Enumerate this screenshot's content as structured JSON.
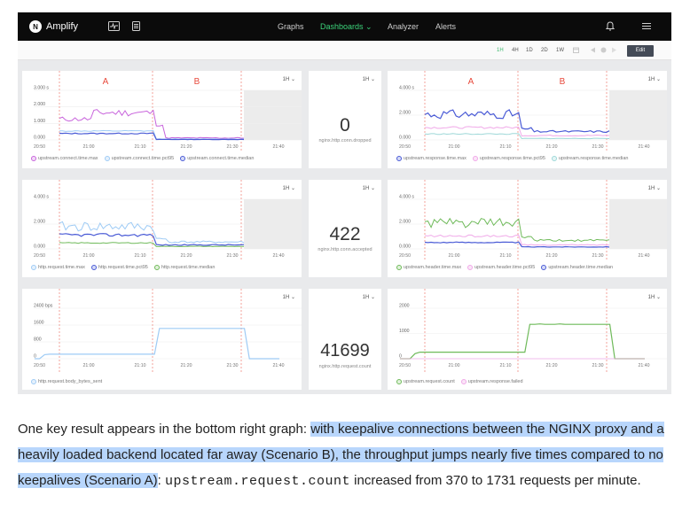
{
  "app": {
    "logo_letter": "N",
    "name": "Amplify"
  },
  "nav": {
    "graphs": "Graphs",
    "dashboards": "Dashboards",
    "analyzer": "Analyzer",
    "alerts": "Alerts"
  },
  "time_ranges": [
    "1H",
    "4H",
    "1D",
    "2D",
    "1W"
  ],
  "edit_label": "Edit",
  "panel_range": "1H",
  "scenario_a": "A",
  "scenario_b": "B",
  "colors": {
    "accent": "#3cd37a",
    "max": "#c864dc",
    "pct95": "#9ecbf5",
    "median": "#4a5bd6",
    "green": "#6fba5a",
    "red_marker": "#f08c82",
    "highlight": "#b8d6fc"
  },
  "panels": {
    "p1": {
      "y_ticks": [
        "3.000 s",
        "2.000",
        "1.000",
        "0.000"
      ],
      "x_ticks": [
        "20:50",
        "21:00",
        "21:10",
        "21:20",
        "21:30",
        "21:40"
      ],
      "legend": [
        "upstream.connect.time.max",
        "upstream.connect.time.pct95",
        "upstream.connect.time.median"
      ]
    },
    "p2": {
      "value": "0",
      "metric": "nginx.http.conn.dropped"
    },
    "p3": {
      "y_ticks": [
        "4.000 s",
        "2.000",
        "0.000"
      ],
      "x_ticks": [
        "20:50",
        "21:00",
        "21:10",
        "21:20",
        "21:30",
        "21:40"
      ],
      "legend": [
        "upstream.response.time.max",
        "upstream.response.time.pct95",
        "upstream.response.time.median"
      ]
    },
    "p4": {
      "y_ticks": [
        "4.000 s",
        "2.000",
        "0.000"
      ],
      "x_ticks": [
        "20:50",
        "21:00",
        "21:10",
        "21:20",
        "21:30",
        "21:40"
      ],
      "legend": [
        "http.request.time.max",
        "http.request.time.pct95",
        "http.request.time.median"
      ]
    },
    "p5": {
      "value": "422",
      "metric": "nginx.http.conn.accepted"
    },
    "p6": {
      "y_ticks": [
        "4.000 s",
        "2.000",
        "0.000"
      ],
      "x_ticks": [
        "20:50",
        "21:00",
        "21:10",
        "21:20",
        "21:30",
        "21:40"
      ],
      "legend": [
        "upstream.header.time.max",
        "upstream.header.time.pct95",
        "upstream.header.time.median"
      ]
    },
    "p7": {
      "y_ticks": [
        "2400 bps",
        "1600",
        "800",
        "0"
      ],
      "x_ticks": [
        "20:50",
        "21:00",
        "21:10",
        "21:20",
        "21:30",
        "21:40"
      ],
      "legend": [
        "http.request.body_bytes_sent"
      ]
    },
    "p8": {
      "value": "41699",
      "metric": "nginx.http.request.count"
    },
    "p9": {
      "y_ticks": [
        "2000",
        "1000",
        "0"
      ],
      "x_ticks": [
        "20:50",
        "21:00",
        "21:10",
        "21:20",
        "21:30",
        "21:40"
      ],
      "legend": [
        "upstream.request.count",
        "upstream.response.failed"
      ]
    }
  },
  "caption": {
    "t1": "One key result appears in the bottom right graph: ",
    "t2": "with keepalive connections between the NGINX proxy and a heavily loaded backend located far away (Scenario B), the throughput jumps nearly five times compared to no keepalives (Scenario A)",
    "t3": ": ",
    "code": "upstream.request.count",
    "t4": " increased from 370 to 1731 requests per minute."
  }
}
